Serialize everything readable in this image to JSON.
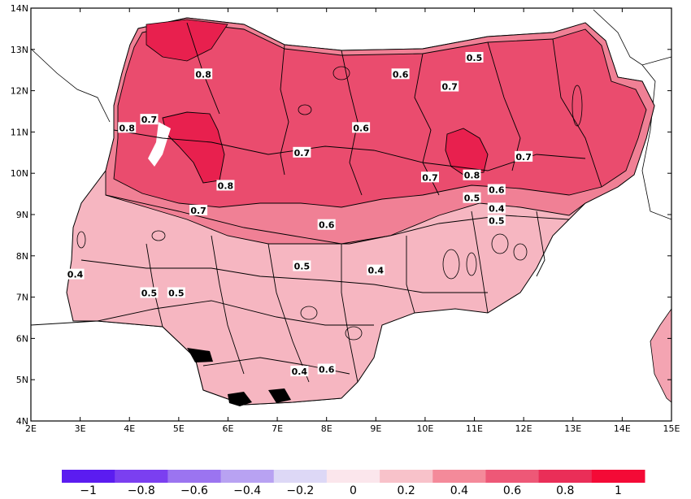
{
  "map": {
    "lon_ticks": [
      "2E",
      "3E",
      "4E",
      "5E",
      "6E",
      "7E",
      "8E",
      "9E",
      "10E",
      "11E",
      "12E",
      "13E",
      "14E",
      "15E"
    ],
    "lat_ticks": [
      "4N",
      "5N",
      "6N",
      "7N",
      "8N",
      "9N",
      "10N",
      "11N",
      "12N",
      "13N",
      "14N"
    ],
    "lon_range": [
      2,
      15
    ],
    "lat_range": [
      4,
      14
    ],
    "contour_labels": [
      {
        "text": "0.5",
        "lon": 11.0,
        "lat": 12.8
      },
      {
        "text": "0.8",
        "lon": 5.5,
        "lat": 12.4
      },
      {
        "text": "0.6",
        "lon": 9.5,
        "lat": 12.4
      },
      {
        "text": "0.7",
        "lon": 10.5,
        "lat": 12.1
      },
      {
        "text": "0.7",
        "lon": 4.4,
        "lat": 11.3
      },
      {
        "text": "0.8",
        "lon": 3.95,
        "lat": 11.1
      },
      {
        "text": "0.6",
        "lon": 8.7,
        "lat": 11.1
      },
      {
        "text": "0.7",
        "lon": 7.5,
        "lat": 10.5
      },
      {
        "text": "0.7",
        "lon": 12.0,
        "lat": 10.4
      },
      {
        "text": "0.7",
        "lon": 10.1,
        "lat": 9.9
      },
      {
        "text": "0.8",
        "lon": 10.95,
        "lat": 9.95
      },
      {
        "text": "0.8",
        "lon": 5.95,
        "lat": 9.7
      },
      {
        "text": "0.6",
        "lon": 11.45,
        "lat": 9.6
      },
      {
        "text": "0.5",
        "lon": 10.95,
        "lat": 9.4
      },
      {
        "text": "0.7",
        "lon": 5.4,
        "lat": 9.1
      },
      {
        "text": "0.4",
        "lon": 11.45,
        "lat": 9.15
      },
      {
        "text": "0.5",
        "lon": 11.45,
        "lat": 8.85
      },
      {
        "text": "0.6",
        "lon": 8.0,
        "lat": 8.75
      },
      {
        "text": "0.5",
        "lon": 7.5,
        "lat": 7.75
      },
      {
        "text": "0.4",
        "lon": 9.0,
        "lat": 7.65
      },
      {
        "text": "0.4",
        "lon": 2.9,
        "lat": 7.55
      },
      {
        "text": "0.5",
        "lon": 4.4,
        "lat": 7.1
      },
      {
        "text": "0.5",
        "lon": 4.95,
        "lat": 7.1
      },
      {
        "text": "0.4",
        "lon": 7.45,
        "lat": 5.2
      },
      {
        "text": "0.6",
        "lon": 8.0,
        "lat": 5.25
      }
    ]
  },
  "legend": {
    "labels": [
      "−1",
      "−0.8",
      "−0.6",
      "−0.4",
      "−0.2",
      "0",
      "0.2",
      "0.4",
      "0.6",
      "0.8",
      "1"
    ],
    "colors": [
      "#5b1cf0",
      "#7b3ff0",
      "#9b74f0",
      "#b8a2f2",
      "#ddd8f6",
      "#fbe6ec",
      "#f8c2ca",
      "#f48a9a",
      "#ee5877",
      "#ea2e58",
      "#f40a36"
    ]
  },
  "colors": {
    "land_other": "#ffffff",
    "field_low": "#f6b6c1",
    "field_mid": "#f08095",
    "field_high": "#ea4c6e",
    "field_peak": "#e8204e",
    "boundary": "#000000"
  }
}
